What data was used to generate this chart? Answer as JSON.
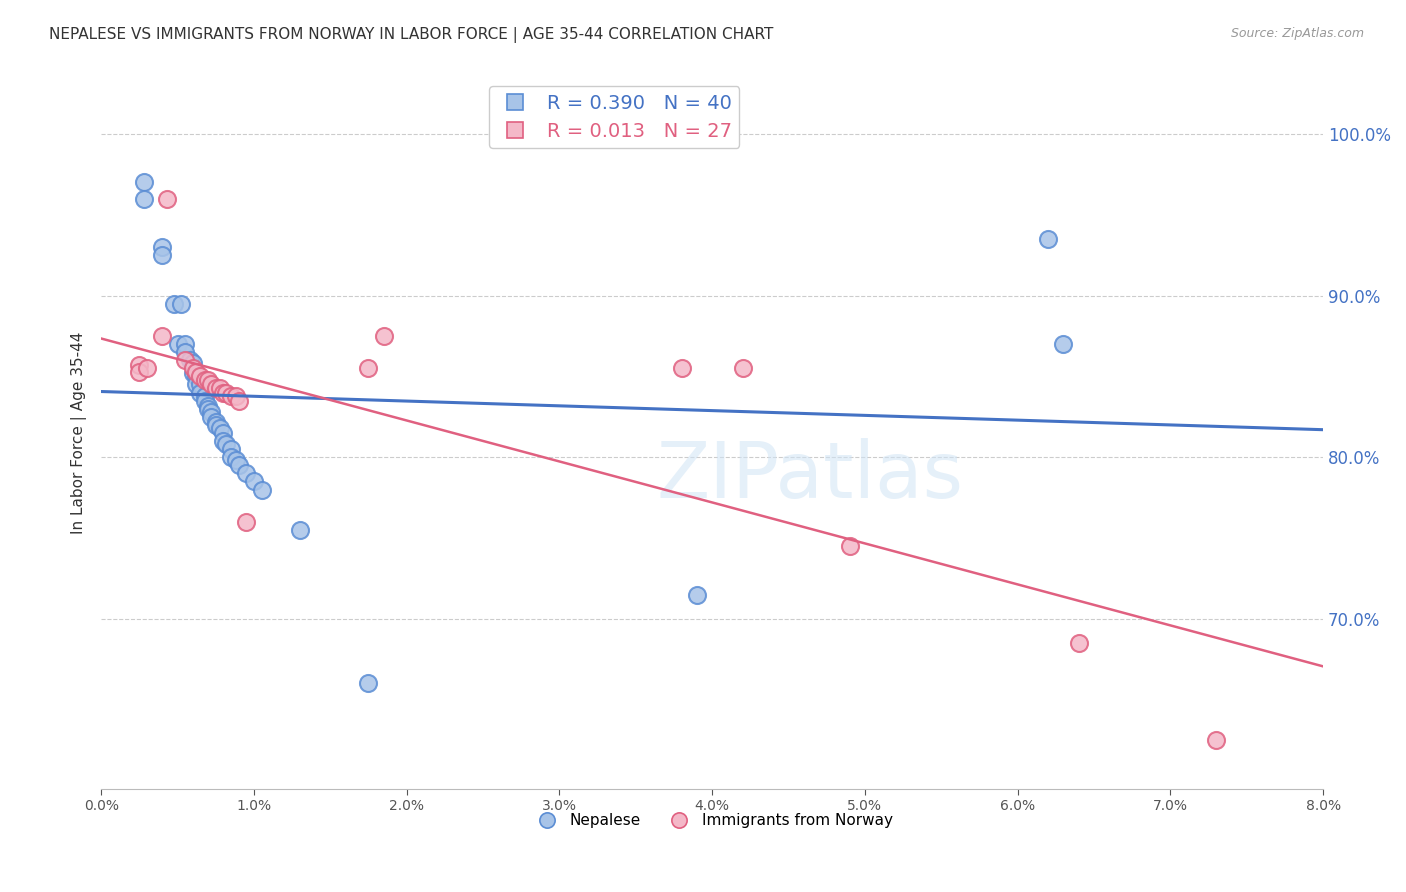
{
  "title": "NEPALESE VS IMMIGRANTS FROM NORWAY IN LABOR FORCE | AGE 35-44 CORRELATION CHART",
  "source": "Source: ZipAtlas.com",
  "ylabel": "In Labor Force | Age 35-44",
  "y_ticks_right": [
    0.7,
    0.8,
    0.9,
    1.0
  ],
  "y_tick_labels_right": [
    "70.0%",
    "80.0%",
    "90.0%",
    "100.0%"
  ],
  "xlim": [
    0.0,
    0.08
  ],
  "ylim": [
    0.595,
    1.035
  ],
  "background_color": "#ffffff",
  "grid_color": "#cccccc",
  "title_color": "#333333",
  "title_fontsize": 11,
  "axis_label_color": "#4472c4",
  "watermark": "ZIPatlas",
  "blue_R": 0.39,
  "blue_N": 40,
  "pink_R": 0.013,
  "pink_N": 27,
  "blue_color": "#a8c4e8",
  "pink_color": "#f4b8c8",
  "blue_edge_color": "#5b8dd4",
  "pink_edge_color": "#e06080",
  "blue_line_color": "#4472C4",
  "pink_line_color": "#E06080",
  "nepalese_x": [
    0.0028,
    0.0028,
    0.004,
    0.004,
    0.0048,
    0.0052,
    0.005,
    0.0055,
    0.0055,
    0.0058,
    0.006,
    0.006,
    0.0062,
    0.0062,
    0.0065,
    0.0065,
    0.0068,
    0.0068,
    0.007,
    0.007,
    0.0072,
    0.0072,
    0.0075,
    0.0075,
    0.0078,
    0.008,
    0.008,
    0.0082,
    0.0085,
    0.0085,
    0.0088,
    0.009,
    0.0095,
    0.01,
    0.0105,
    0.013,
    0.0175,
    0.039,
    0.062,
    0.063
  ],
  "nepalese_y": [
    0.97,
    0.96,
    0.93,
    0.925,
    0.895,
    0.895,
    0.87,
    0.87,
    0.865,
    0.86,
    0.858,
    0.852,
    0.85,
    0.845,
    0.845,
    0.84,
    0.838,
    0.835,
    0.832,
    0.83,
    0.828,
    0.825,
    0.822,
    0.82,
    0.818,
    0.815,
    0.81,
    0.808,
    0.805,
    0.8,
    0.798,
    0.795,
    0.79,
    0.785,
    0.78,
    0.755,
    0.66,
    0.715,
    0.935,
    0.87
  ],
  "norway_x": [
    0.0025,
    0.0025,
    0.003,
    0.004,
    0.0043,
    0.0055,
    0.006,
    0.0062,
    0.0065,
    0.0068,
    0.007,
    0.0072,
    0.0075,
    0.0078,
    0.008,
    0.0082,
    0.0085,
    0.0088,
    0.009,
    0.0095,
    0.0175,
    0.0185,
    0.038,
    0.042,
    0.049,
    0.064,
    0.073
  ],
  "norway_y": [
    0.857,
    0.853,
    0.855,
    0.875,
    0.96,
    0.86,
    0.855,
    0.853,
    0.85,
    0.848,
    0.848,
    0.845,
    0.843,
    0.843,
    0.84,
    0.84,
    0.838,
    0.838,
    0.835,
    0.76,
    0.855,
    0.875,
    0.855,
    0.855,
    0.745,
    0.685,
    0.625
  ],
  "legend_nepalese": "Nepalese",
  "legend_norway": "Immigrants from Norway"
}
